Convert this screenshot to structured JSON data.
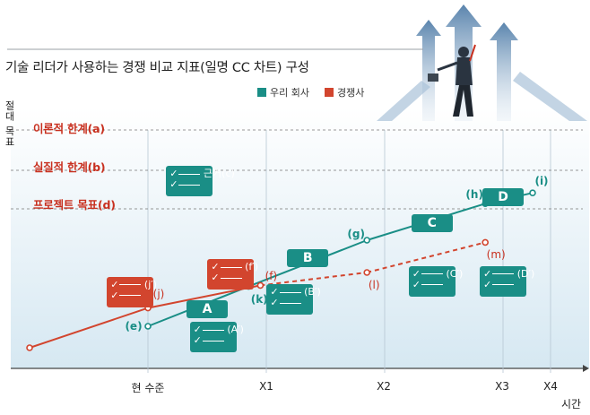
{
  "title": "기술 리더가 사용하는 경쟁 비교 지표(일명 CC 차트) 구성",
  "legend": {
    "items": [
      {
        "label": "우리 회사",
        "color": "#1a8e86"
      },
      {
        "label": "경쟁사",
        "color": "#d2452e"
      }
    ]
  },
  "chart_data": {
    "type": "line",
    "ylabel": "절대 목표",
    "xlabel": "시간",
    "x_ticks": [
      "현 수준",
      "X1",
      "X2",
      "X3",
      "X4"
    ],
    "reference_lines": [
      {
        "label": "이론적 한계(a)",
        "level": 9.0
      },
      {
        "label": "실질적 한계(b)",
        "level": 7.5
      },
      {
        "label": "프로젝트 목표(d)",
        "level": 6.0
      }
    ],
    "series": [
      {
        "name": "우리 회사",
        "color": "#1a8e86",
        "points": [
          {
            "x": 1.0,
            "y": 1.0,
            "label": "(e)"
          },
          {
            "x": 1.85,
            "y": 2.85,
            "label": "(k)"
          },
          {
            "x": 2.85,
            "y": 5.0,
            "label": "(g)"
          },
          {
            "x": 3.85,
            "y": 6.7,
            "label": "(h)"
          },
          {
            "x": 4.25,
            "y": 7.2,
            "label": "(i)"
          }
        ]
      },
      {
        "name": "경쟁사",
        "color": "#d2452e",
        "points": [
          {
            "x": 0.0,
            "y": 0.0,
            "label": ""
          },
          {
            "x": 1.0,
            "y": 1.85,
            "label": "(j)"
          },
          {
            "x": 1.95,
            "y": 2.9,
            "label": "(f)"
          },
          {
            "x": 2.85,
            "y": 3.5,
            "label": "(l)",
            "projected": true
          },
          {
            "x": 3.85,
            "y": 4.9,
            "label": "(m)",
            "projected": true
          }
        ]
      }
    ],
    "milestones": [
      {
        "label": "A",
        "x": 1.5,
        "y": 1.8
      },
      {
        "label": "B",
        "x": 2.35,
        "y": 4.15
      },
      {
        "label": "C",
        "x": 3.4,
        "y": 5.8
      },
      {
        "label": "D",
        "x": 4.0,
        "y": 7.0
      }
    ],
    "evidence_boxes": [
      {
        "label": "근거(c)",
        "x": 1.35,
        "y": 7.75,
        "color": "teal"
      },
      {
        "label": "(j′)",
        "x": 0.85,
        "y": 2.6,
        "color": "red"
      },
      {
        "label": "(f′)",
        "x": 1.7,
        "y": 3.4,
        "color": "red"
      },
      {
        "label": "(A′)",
        "x": 1.55,
        "y": 0.5,
        "color": "teal"
      },
      {
        "label": "(B′)",
        "x": 2.2,
        "y": 2.25,
        "color": "teal"
      },
      {
        "label": "(C′)",
        "x": 3.4,
        "y": 3.1,
        "color": "teal"
      },
      {
        "label": "(D′)",
        "x": 4.0,
        "y": 3.1,
        "color": "teal"
      }
    ]
  }
}
